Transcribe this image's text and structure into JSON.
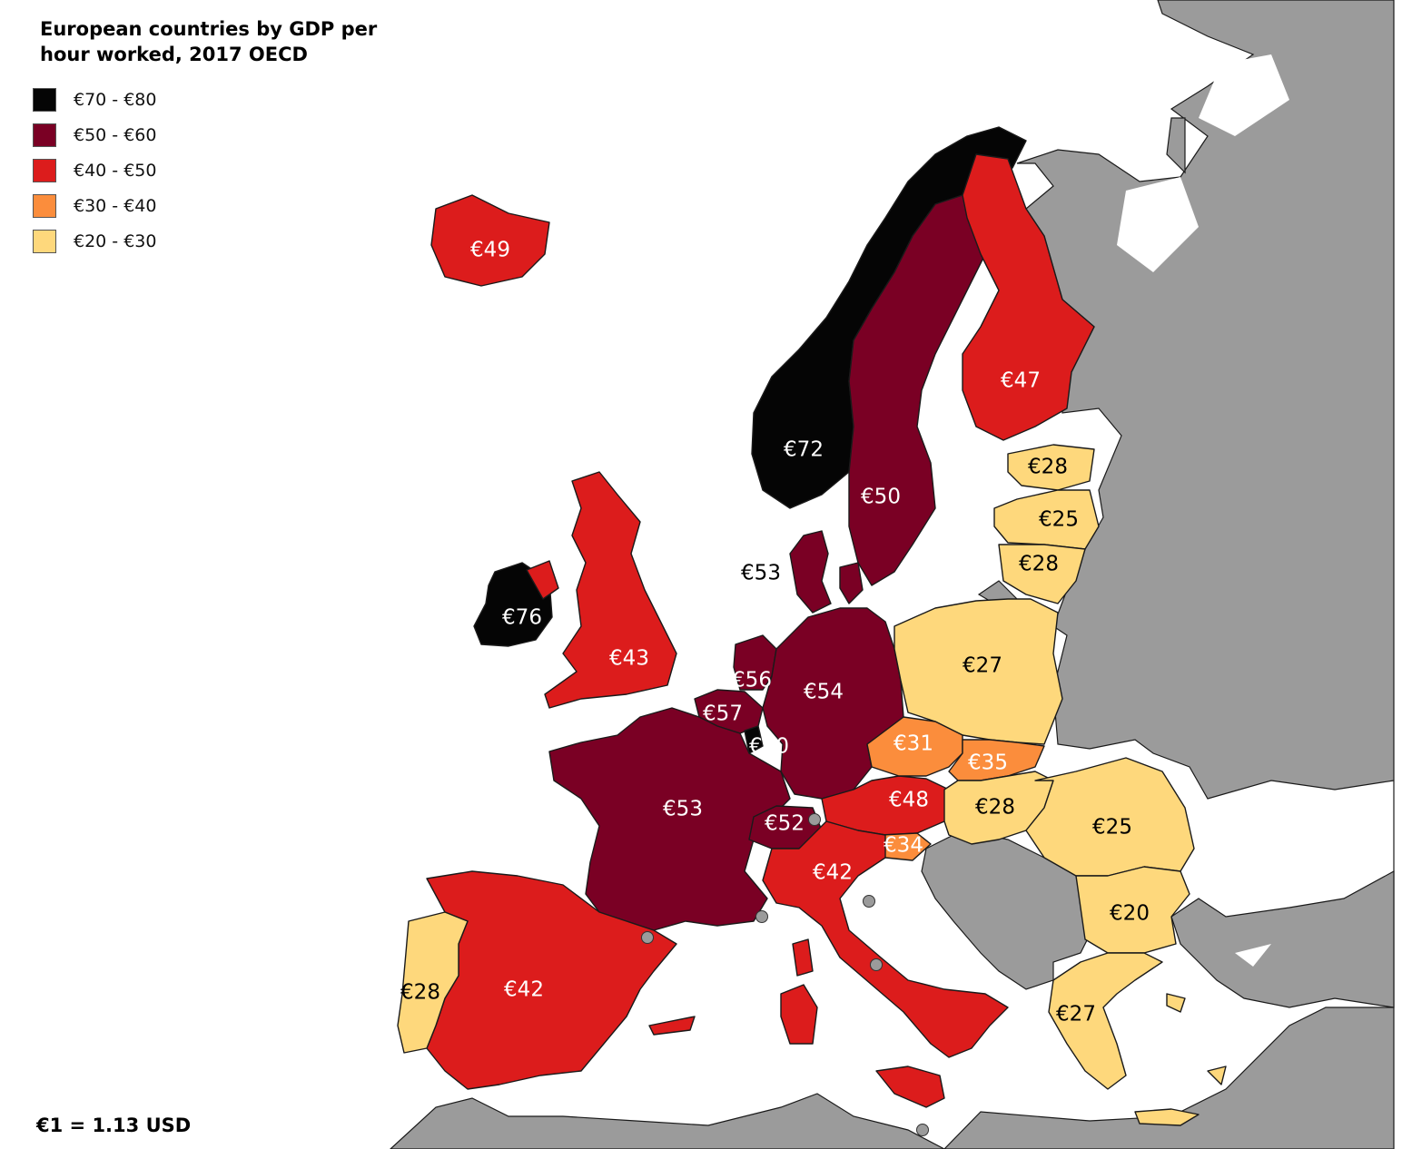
{
  "title": "European countries by GDP per hour worked, 2017 OECD",
  "footnote": "€1 = 1.13 USD",
  "colors": {
    "background": "#ffffff",
    "non_data_land": "#9b9b9b",
    "border": "#1a1a1a",
    "dot": "#9b9b9b"
  },
  "legend": [
    {
      "label": "€70 - €80",
      "color": "#050505"
    },
    {
      "label": "€50 - €60",
      "color": "#7a0024"
    },
    {
      "label": "€40 - €50",
      "color": "#dc1c1c"
    },
    {
      "label": "€30 - €40",
      "color": "#fb8d3c"
    },
    {
      "label": "€20 - €30",
      "color": "#fed87c"
    }
  ],
  "countries": {
    "iceland": {
      "label": "€49",
      "value": 49
    },
    "norway": {
      "label": "€72",
      "value": 72
    },
    "sweden": {
      "label": "€50",
      "value": 50
    },
    "finland": {
      "label": "€47",
      "value": 47
    },
    "denmark": {
      "label": "€53",
      "value": 53
    },
    "ireland": {
      "label": "€76",
      "value": 76
    },
    "united_kingdom": {
      "label": "€43",
      "value": 43
    },
    "netherlands": {
      "label": "€56",
      "value": 56
    },
    "belgium": {
      "label": "€57",
      "value": 57
    },
    "luxembourg": {
      "label": "€70",
      "value": 70
    },
    "germany": {
      "label": "€54",
      "value": 54
    },
    "france": {
      "label": "€53",
      "value": 53
    },
    "switzerland": {
      "label": "€52",
      "value": 52
    },
    "austria": {
      "label": "€48",
      "value": 48
    },
    "slovenia": {
      "label": "€34",
      "value": 34
    },
    "italy": {
      "label": "€42",
      "value": 42
    },
    "spain": {
      "label": "€42",
      "value": 42
    },
    "portugal": {
      "label": "€28",
      "value": 28
    },
    "estonia": {
      "label": "€28",
      "value": 28
    },
    "latvia": {
      "label": "€25",
      "value": 25
    },
    "lithuania": {
      "label": "€28",
      "value": 28
    },
    "poland": {
      "label": "€27",
      "value": 27
    },
    "czechia": {
      "label": "€31",
      "value": 31
    },
    "slovakia": {
      "label": "€35",
      "value": 35
    },
    "hungary": {
      "label": "€28",
      "value": 28
    },
    "romania": {
      "label": "€25",
      "value": 25
    },
    "bulgaria": {
      "label": "€20",
      "value": 20
    },
    "greece": {
      "label": "€27",
      "value": 27
    }
  }
}
